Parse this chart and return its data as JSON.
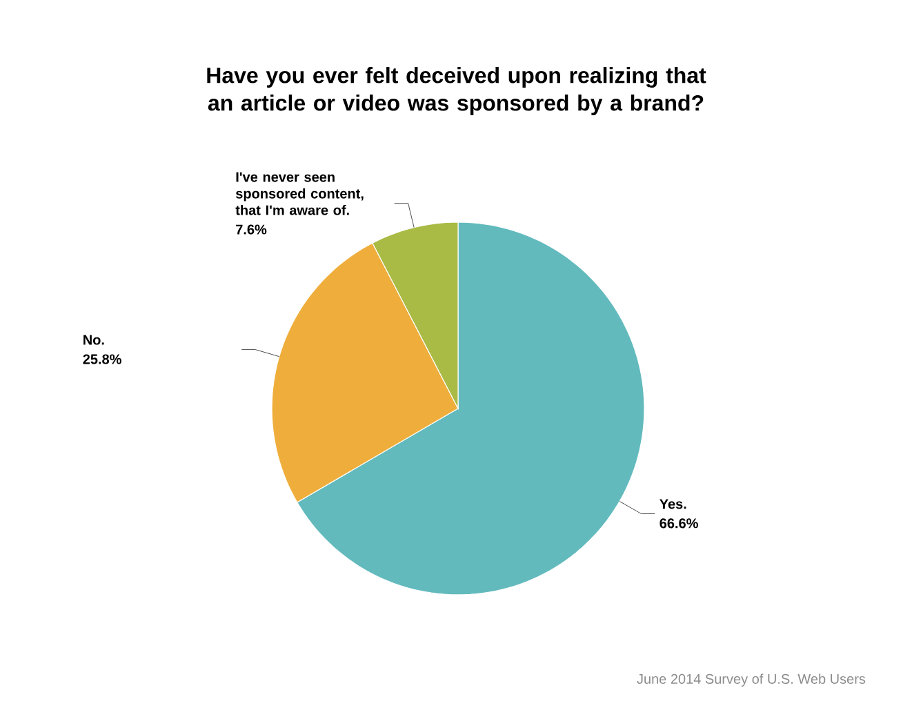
{
  "chart_data": {
    "type": "pie",
    "title": "Have you ever felt deceived upon realizing that an article or video was sponsored by a brand?",
    "categories": [
      "Yes.",
      "No.",
      "I've never seen sponsored content, that I'm aware of."
    ],
    "values": [
      66.6,
      25.8,
      7.6
    ],
    "colors": [
      "#62babd",
      "#efae3c",
      "#a9bb45"
    ],
    "value_labels": [
      "66.6%",
      "25.8%",
      "7.6%"
    ],
    "annotations": [
      "June 2014 Survey of U.S. Web Users"
    ]
  }
}
